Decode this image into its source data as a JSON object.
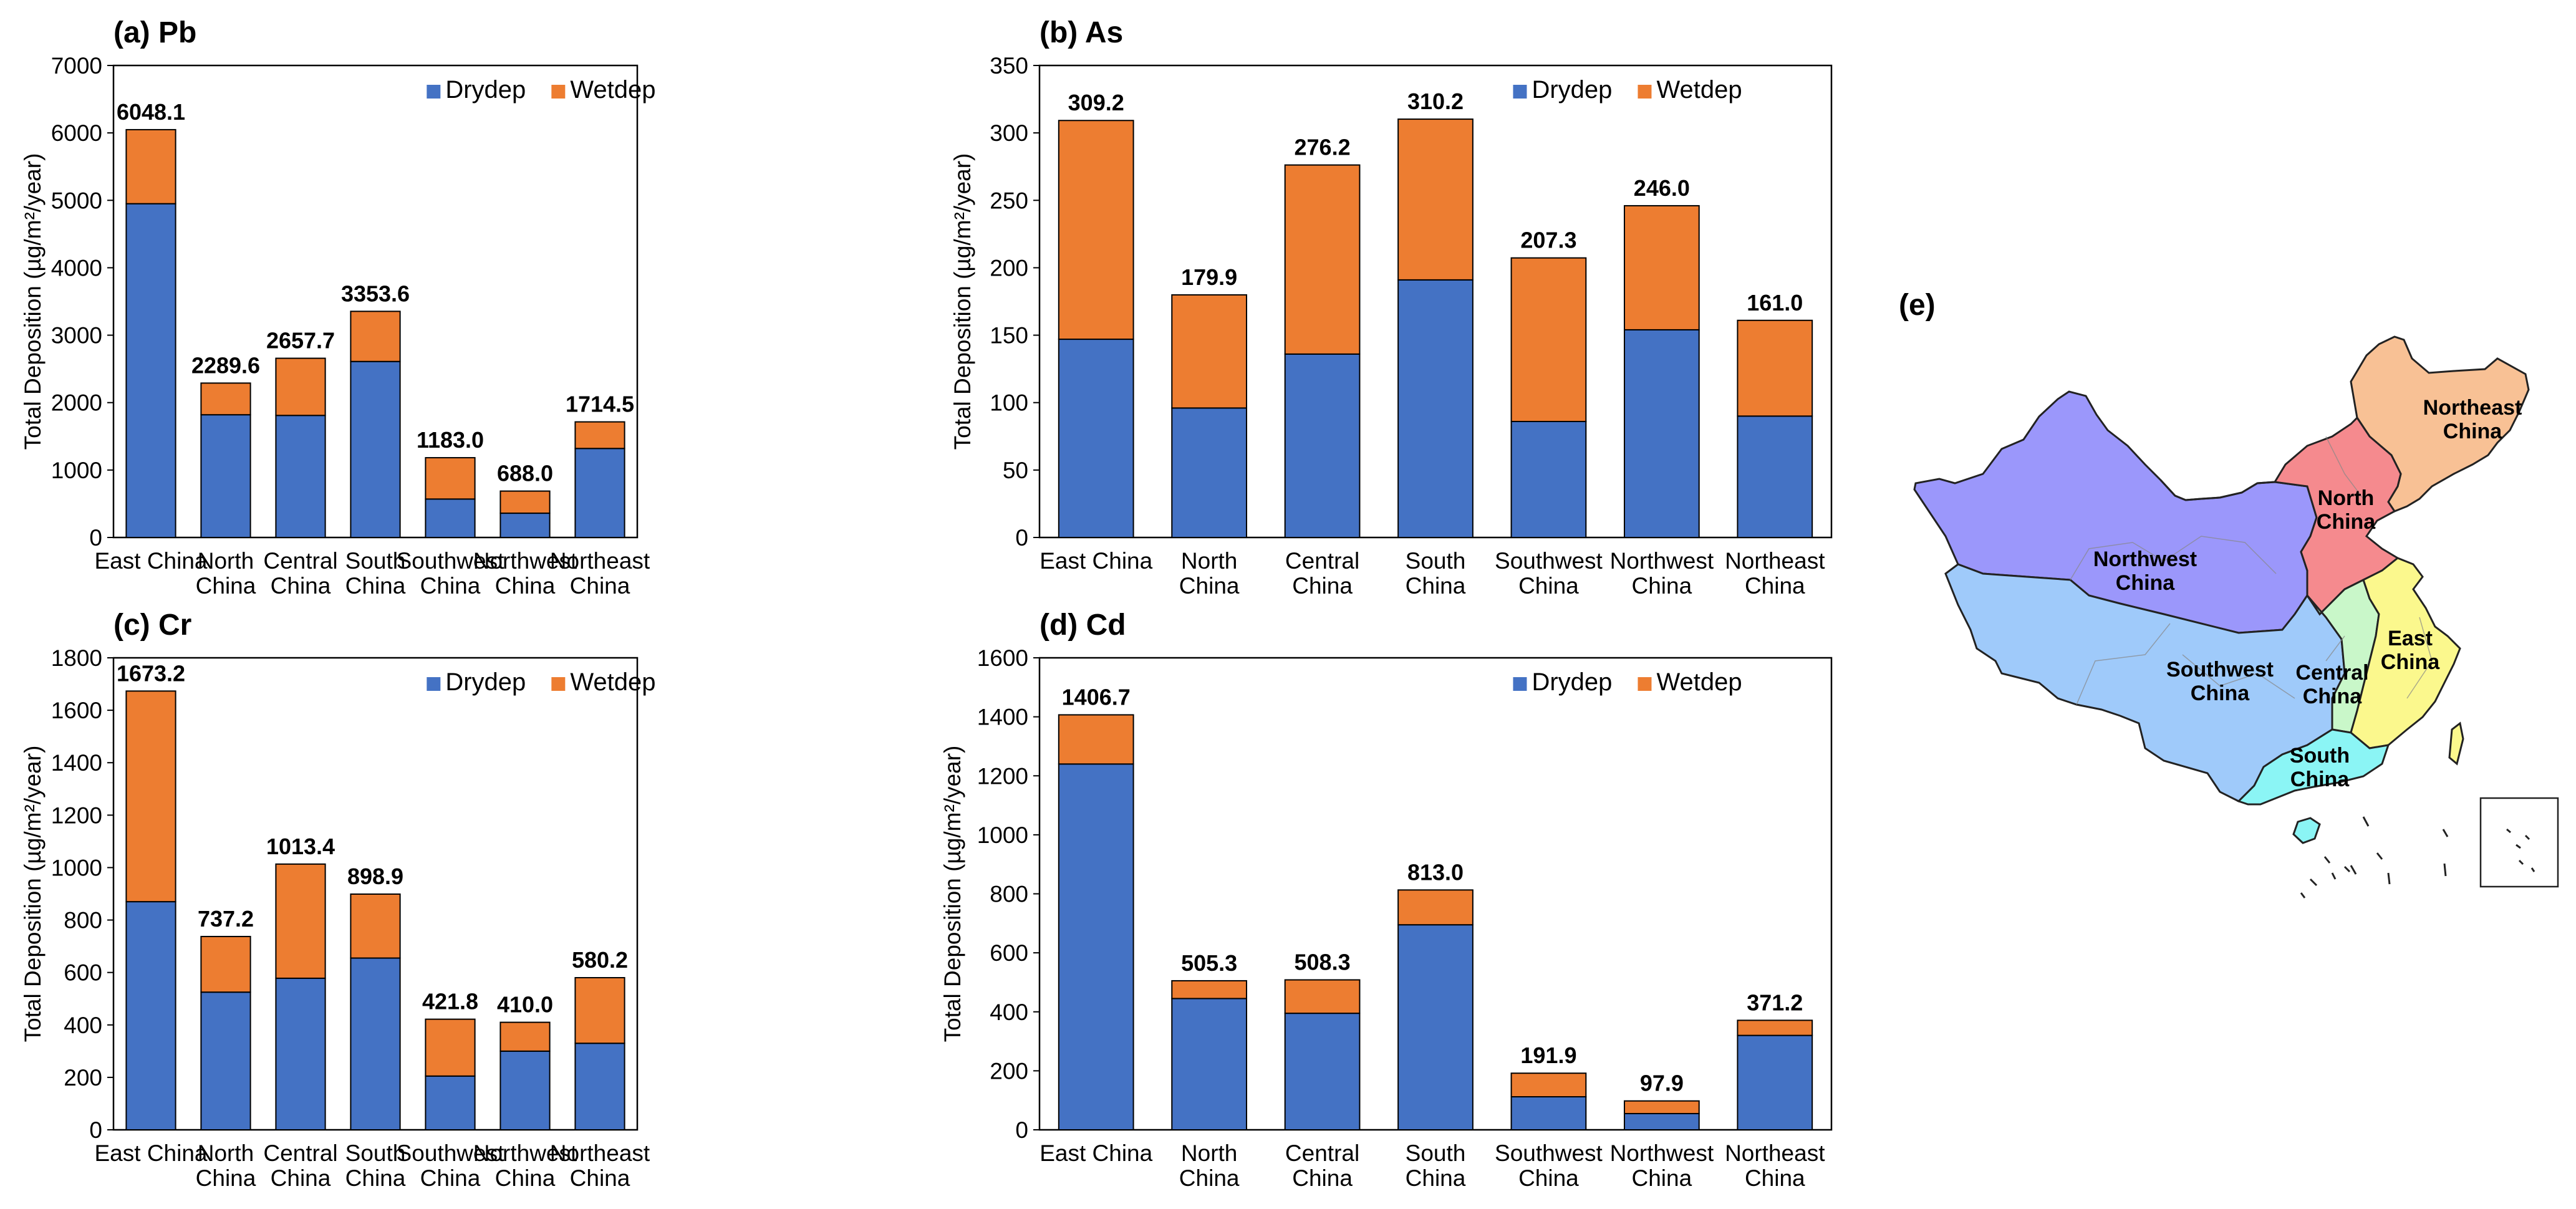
{
  "chart_data": [
    {
      "type": "bar",
      "stacked": true,
      "title": "(a) Pb",
      "ylabel": "Total Deposition (µg/m²/year)",
      "ylim": [
        0,
        7000
      ],
      "yticks": [
        0,
        1000,
        2000,
        3000,
        4000,
        5000,
        6000,
        7000
      ],
      "categories": [
        [
          "East China"
        ],
        [
          "North",
          "China"
        ],
        [
          "Central",
          "China"
        ],
        [
          "South",
          "China"
        ],
        [
          "Southwest",
          "China"
        ],
        [
          "Northwest",
          "China"
        ],
        [
          "Northeast",
          "China"
        ]
      ],
      "series": [
        {
          "name": "Drydep",
          "values": [
            4950,
            1820,
            1810,
            2610,
            570,
            360,
            1320
          ]
        },
        {
          "name": "Wetdep",
          "values": [
            1098.1,
            469.6,
            847.7,
            743.6,
            613.0,
            328.0,
            394.5
          ]
        }
      ],
      "totals": [
        "6048.1",
        "2289.6",
        "2657.7",
        "3353.6",
        "1183.0",
        "688.0",
        "1714.5"
      ],
      "legend": "top-right"
    },
    {
      "type": "bar",
      "stacked": true,
      "title": "(b) As",
      "ylabel": "Total Deposition (µg/m²/year)",
      "ylim": [
        0,
        350
      ],
      "yticks": [
        0,
        50,
        100,
        150,
        200,
        250,
        300,
        350
      ],
      "categories": [
        [
          "East China"
        ],
        [
          "North",
          "China"
        ],
        [
          "Central",
          "China"
        ],
        [
          "South",
          "China"
        ],
        [
          "Southwest",
          "China"
        ],
        [
          "Northwest",
          "China"
        ],
        [
          "Northeast",
          "China"
        ]
      ],
      "series": [
        {
          "name": "Drydep",
          "values": [
            147,
            96,
            136,
            191,
            86,
            154,
            90
          ]
        },
        {
          "name": "Wetdep",
          "values": [
            162.2,
            83.9,
            140.2,
            119.2,
            121.3,
            92.0,
            71.0
          ]
        }
      ],
      "totals": [
        "309.2",
        "179.9",
        "276.2",
        "310.2",
        "207.3",
        "246.0",
        "161.0"
      ],
      "legend": "top-right"
    },
    {
      "type": "bar",
      "stacked": true,
      "title": "(c) Cr",
      "ylabel": "Total Deposition (µg/m²/year)",
      "ylim": [
        0,
        1800
      ],
      "yticks": [
        0,
        200,
        400,
        600,
        800,
        1000,
        1200,
        1400,
        1600,
        1800
      ],
      "categories": [
        [
          "East China"
        ],
        [
          "North",
          "China"
        ],
        [
          "Central",
          "China"
        ],
        [
          "South",
          "China"
        ],
        [
          "Southwest",
          "China"
        ],
        [
          "Northwest",
          "China"
        ],
        [
          "Northeast",
          "China"
        ]
      ],
      "series": [
        {
          "name": "Drydep",
          "values": [
            870,
            525,
            578,
            655,
            205,
            300,
            330
          ]
        },
        {
          "name": "Wetdep",
          "values": [
            803.2,
            212.2,
            435.4,
            243.9,
            216.8,
            110.0,
            250.2
          ]
        }
      ],
      "totals": [
        "1673.2",
        "737.2",
        "1013.4",
        "898.9",
        "421.8",
        "410.0",
        "580.2"
      ],
      "legend": "top-right"
    },
    {
      "type": "bar",
      "stacked": true,
      "title": "(d) Cd",
      "ylabel": "Total Deposition (µg/m²/year)",
      "ylim": [
        0,
        1600
      ],
      "yticks": [
        0,
        200,
        400,
        600,
        800,
        1000,
        1200,
        1400,
        1600
      ],
      "categories": [
        [
          "East China"
        ],
        [
          "North",
          "China"
        ],
        [
          "Central",
          "China"
        ],
        [
          "South",
          "China"
        ],
        [
          "Southwest",
          "China"
        ],
        [
          "Northwest",
          "China"
        ],
        [
          "Northeast",
          "China"
        ]
      ],
      "series": [
        {
          "name": "Drydep",
          "values": [
            1240,
            445,
            395,
            695,
            112,
            55,
            320
          ]
        },
        {
          "name": "Wetdep",
          "values": [
            166.7,
            60.3,
            113.3,
            118.0,
            79.9,
            42.9,
            51.2
          ]
        }
      ],
      "totals": [
        "1406.7",
        "505.3",
        "508.3",
        "813.0",
        "191.9",
        "97.9",
        "371.2"
      ],
      "legend": "top-right"
    }
  ],
  "colors": {
    "Drydep": "#4472c4",
    "Wetdep": "#ed7d31"
  },
  "map": {
    "panel_label": "(e)",
    "regions": [
      {
        "name": "Northeast China",
        "lines": [
          "Northeast",
          "China"
        ],
        "color": "#f8c195"
      },
      {
        "name": "North China",
        "lines": [
          "North",
          "China"
        ],
        "color": "#f58a8e"
      },
      {
        "name": "Northwest China",
        "lines": [
          "Northwest",
          "China"
        ],
        "color": "#9b97fb"
      },
      {
        "name": "Southwest China",
        "lines": [
          "Southwest",
          "China"
        ],
        "color": "#9fcafa"
      },
      {
        "name": "Central China",
        "lines": [
          "Central",
          "China"
        ],
        "color": "#c9f7c9"
      },
      {
        "name": "East China",
        "lines": [
          "East",
          "China"
        ],
        "color": "#fbf88d"
      },
      {
        "name": "South China",
        "lines": [
          "South",
          "China"
        ],
        "color": "#8bf5f5"
      }
    ]
  }
}
